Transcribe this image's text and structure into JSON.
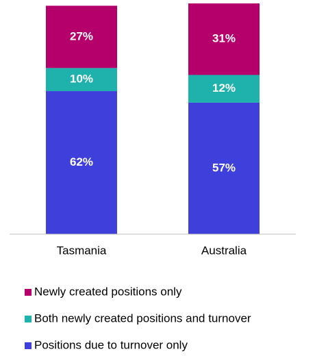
{
  "chart_data": {
    "type": "stacked_bar",
    "categories": [
      "Tasmania",
      "Australia"
    ],
    "ylim": [
      0,
      100
    ],
    "series": [
      {
        "name": "Positions due to turnover only",
        "color": "#3f3fdc",
        "values": [
          62,
          57
        ],
        "value_labels": [
          "62%",
          "57%"
        ]
      },
      {
        "name": "Both newly created positions and turnover",
        "color": "#1fb2ad",
        "values": [
          10,
          12
        ],
        "value_labels": [
          "10%",
          "12%"
        ]
      },
      {
        "name": "Newly created positions only",
        "color": "#b5006b",
        "values": [
          27,
          31
        ],
        "value_labels": [
          "27%",
          "31%"
        ]
      }
    ],
    "legend": "bottom-left"
  }
}
